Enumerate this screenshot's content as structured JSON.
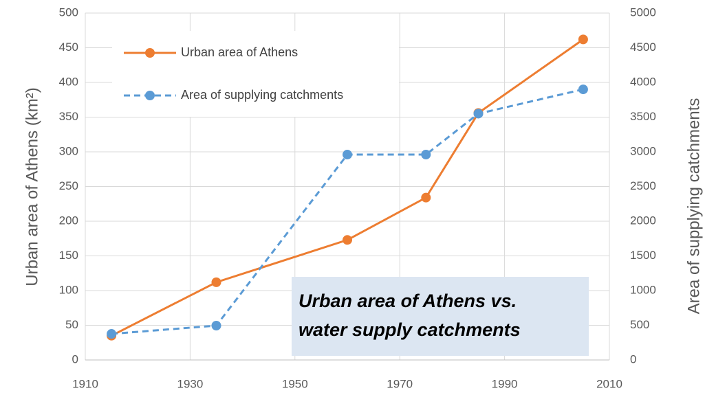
{
  "chart_data": {
    "type": "line",
    "ylabel": "Urban area of Athens (km²)",
    "y2label": "Area of supplying catchments",
    "annotation": [
      "Urban area of Athens vs.",
      "water supply catchments"
    ],
    "x": [
      1915,
      1935,
      1960,
      1975,
      1985,
      2005
    ],
    "series": [
      {
        "name": "Urban area of Athens",
        "color": "#ed7d31",
        "values": [
          35,
          112,
          173,
          234,
          356,
          462
        ],
        "dash": false
      },
      {
        "name": "Area of supplying catchments",
        "color": "#5b9bd5",
        "values": [
          376,
          495,
          2960,
          2960,
          3550,
          3900
        ],
        "axis": "y2",
        "dash": true
      }
    ],
    "xlim": [
      1910,
      2010
    ],
    "xticks": [
      1910,
      1930,
      1950,
      1970,
      1990,
      2010
    ],
    "ylim": [
      0,
      500
    ],
    "yticks": [
      0,
      50,
      100,
      150,
      200,
      250,
      300,
      350,
      400,
      450,
      500
    ],
    "y2lim": [
      0,
      5000
    ],
    "y2ticks": [
      0,
      500,
      1000,
      1500,
      2000,
      2500,
      3000,
      3500,
      4000,
      4500,
      5000
    ],
    "grid": true
  }
}
